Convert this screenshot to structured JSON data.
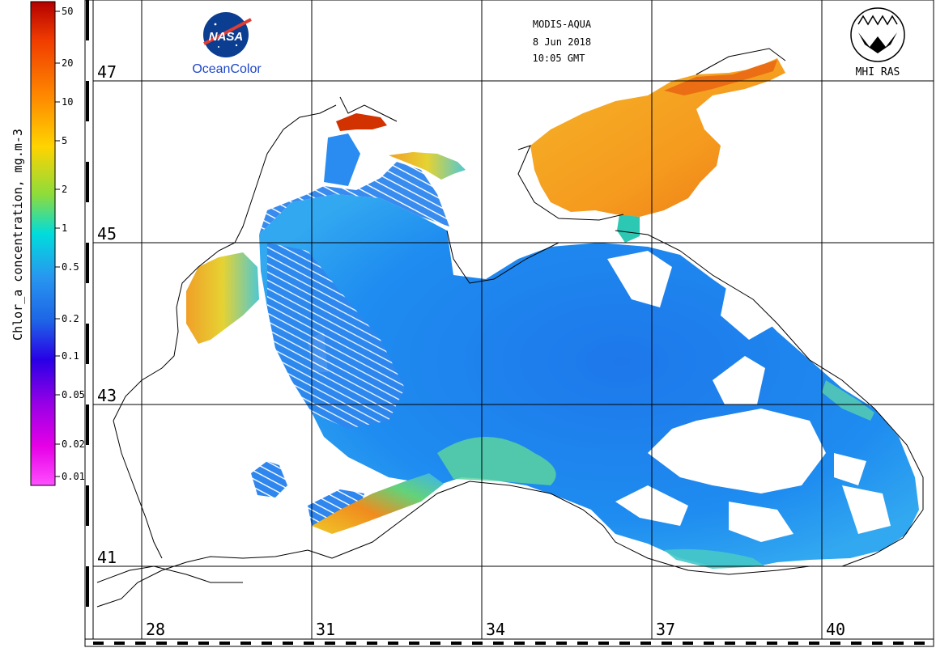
{
  "header": {
    "sensor": "MODIS-AQUA",
    "date": "8 Jun 2018",
    "time": "10:05 GMT"
  },
  "logos": {
    "nasa": {
      "wordmark": "NASA",
      "caption": "OceanColor"
    },
    "mhi": {
      "caption": "MHI RAS"
    }
  },
  "colorbar": {
    "title": "Chlor_a concentration, mg.m-3",
    "ticks": [
      "50",
      "20",
      "10",
      "5",
      "2",
      "1",
      "0.5",
      "0.2",
      "0.1",
      "0.05",
      "0.02",
      "0.01"
    ],
    "colors": {
      "c50": "#b40000",
      "c20": "#f03c00",
      "c10": "#ff8c00",
      "c5": "#ffd400",
      "c2": "#8cdc3c",
      "c1": "#00dcdc",
      "c05": "#2896f0",
      "c02": "#1e64e6",
      "c01": "#2800e6",
      "c005": "#9600e6",
      "c002": "#e600e6",
      "c001": "#ff50ff"
    }
  },
  "axes": {
    "latitude_labels": [
      "47",
      "45",
      "43",
      "41"
    ],
    "longitude_labels": [
      "28",
      "31",
      "34",
      "37",
      "40"
    ]
  },
  "palette": {
    "open_sea": "#1e8cf0",
    "open_sea_light": "#3cb4f0",
    "coastal_green": "#5ad28c",
    "azov": "#f5a01e",
    "azov_dark": "#eb7814",
    "river_red": "#d22800",
    "danube_yellow": "#e6c832",
    "coast_line": "#000000",
    "grid_line": "#000000"
  }
}
